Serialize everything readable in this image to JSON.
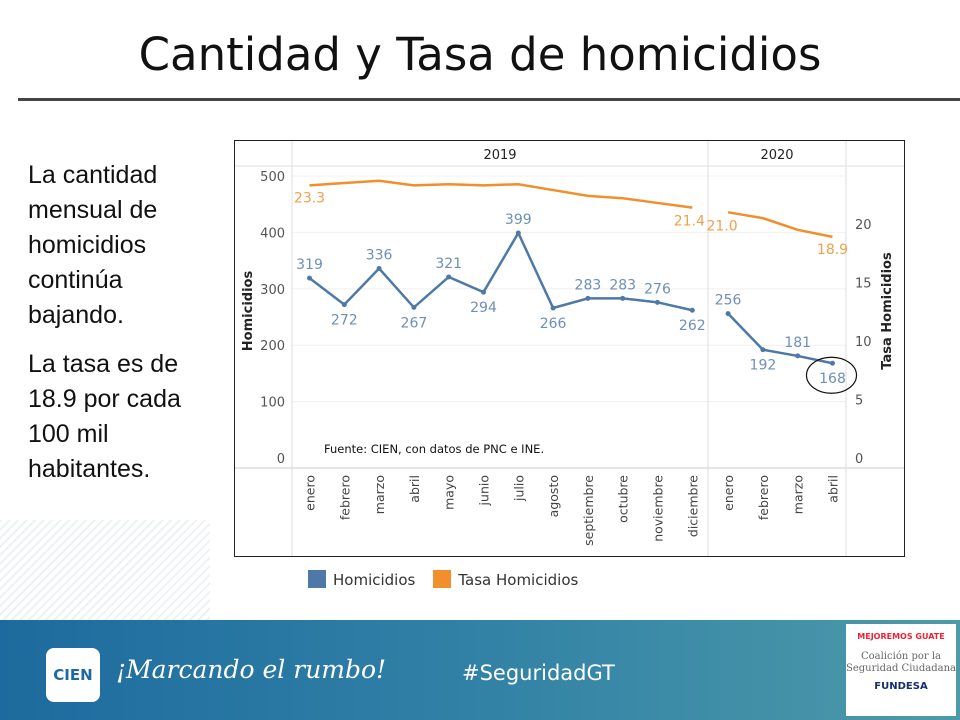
{
  "slide": {
    "title": "Cantidad y Tasa de homicidios",
    "bullets": [
      "La cantidad mensual de homicidios continúa bajando.",
      "La tasa es de 18.9 por cada 100 mil habitantes."
    ],
    "footer": {
      "logo_text": "CIEN",
      "slogan": "¡Marcando el rumbo!",
      "hashtag": "#SeguridadGT",
      "partner_1": "MEJOREMOS GUATE",
      "partner_2": "Coalición por la Seguridad Ciudadana",
      "partner_3": "FUNDESA"
    }
  },
  "chart_data": {
    "type": "line",
    "years": [
      {
        "label": "2019",
        "months": 12
      },
      {
        "label": "2020",
        "months": 4
      }
    ],
    "categories": [
      "enero",
      "febrero",
      "marzo",
      "abril",
      "mayo",
      "junio",
      "julio",
      "agosto",
      "septiembre",
      "octubre",
      "noviembre",
      "diciembre",
      "enero",
      "febrero",
      "marzo",
      "abril"
    ],
    "ylabel": "Homicidios",
    "y2label": "Tasa Homicidios",
    "ylim": [
      0,
      500
    ],
    "y2lim": [
      0,
      25
    ],
    "yticks": [
      0,
      100,
      200,
      300,
      400,
      500
    ],
    "y2ticks": [
      0,
      5,
      10,
      15,
      20
    ],
    "annotation": "Fuente: CIEN, con datos de PNC e INE.",
    "highlight": "168",
    "series": [
      {
        "name": "Homicidios",
        "color": "#4e79a7",
        "axis": "left",
        "values": [
          319,
          272,
          336,
          267,
          321,
          294,
          399,
          266,
          283,
          283,
          276,
          262,
          256,
          192,
          181,
          168
        ],
        "labels": [
          "319",
          "272",
          "336",
          "267",
          "321",
          "294",
          "399",
          "266",
          "283",
          "283",
          "276",
          "262",
          "256",
          "192",
          "181",
          "168"
        ]
      },
      {
        "name": "Tasa Homicidios",
        "color": "#f28e2b",
        "axis": "right",
        "values": [
          23.3,
          23.5,
          23.7,
          23.3,
          23.4,
          23.3,
          23.4,
          22.9,
          22.4,
          22.2,
          21.8,
          21.4,
          21.0,
          20.5,
          19.5,
          18.9
        ],
        "labels": [
          "23.3",
          "",
          "",
          "",
          "",
          "",
          "",
          "",
          "",
          "",
          "",
          "21.4",
          "21.0",
          "",
          "",
          "18.9"
        ]
      }
    ],
    "grid": true,
    "legend": "bottom"
  }
}
